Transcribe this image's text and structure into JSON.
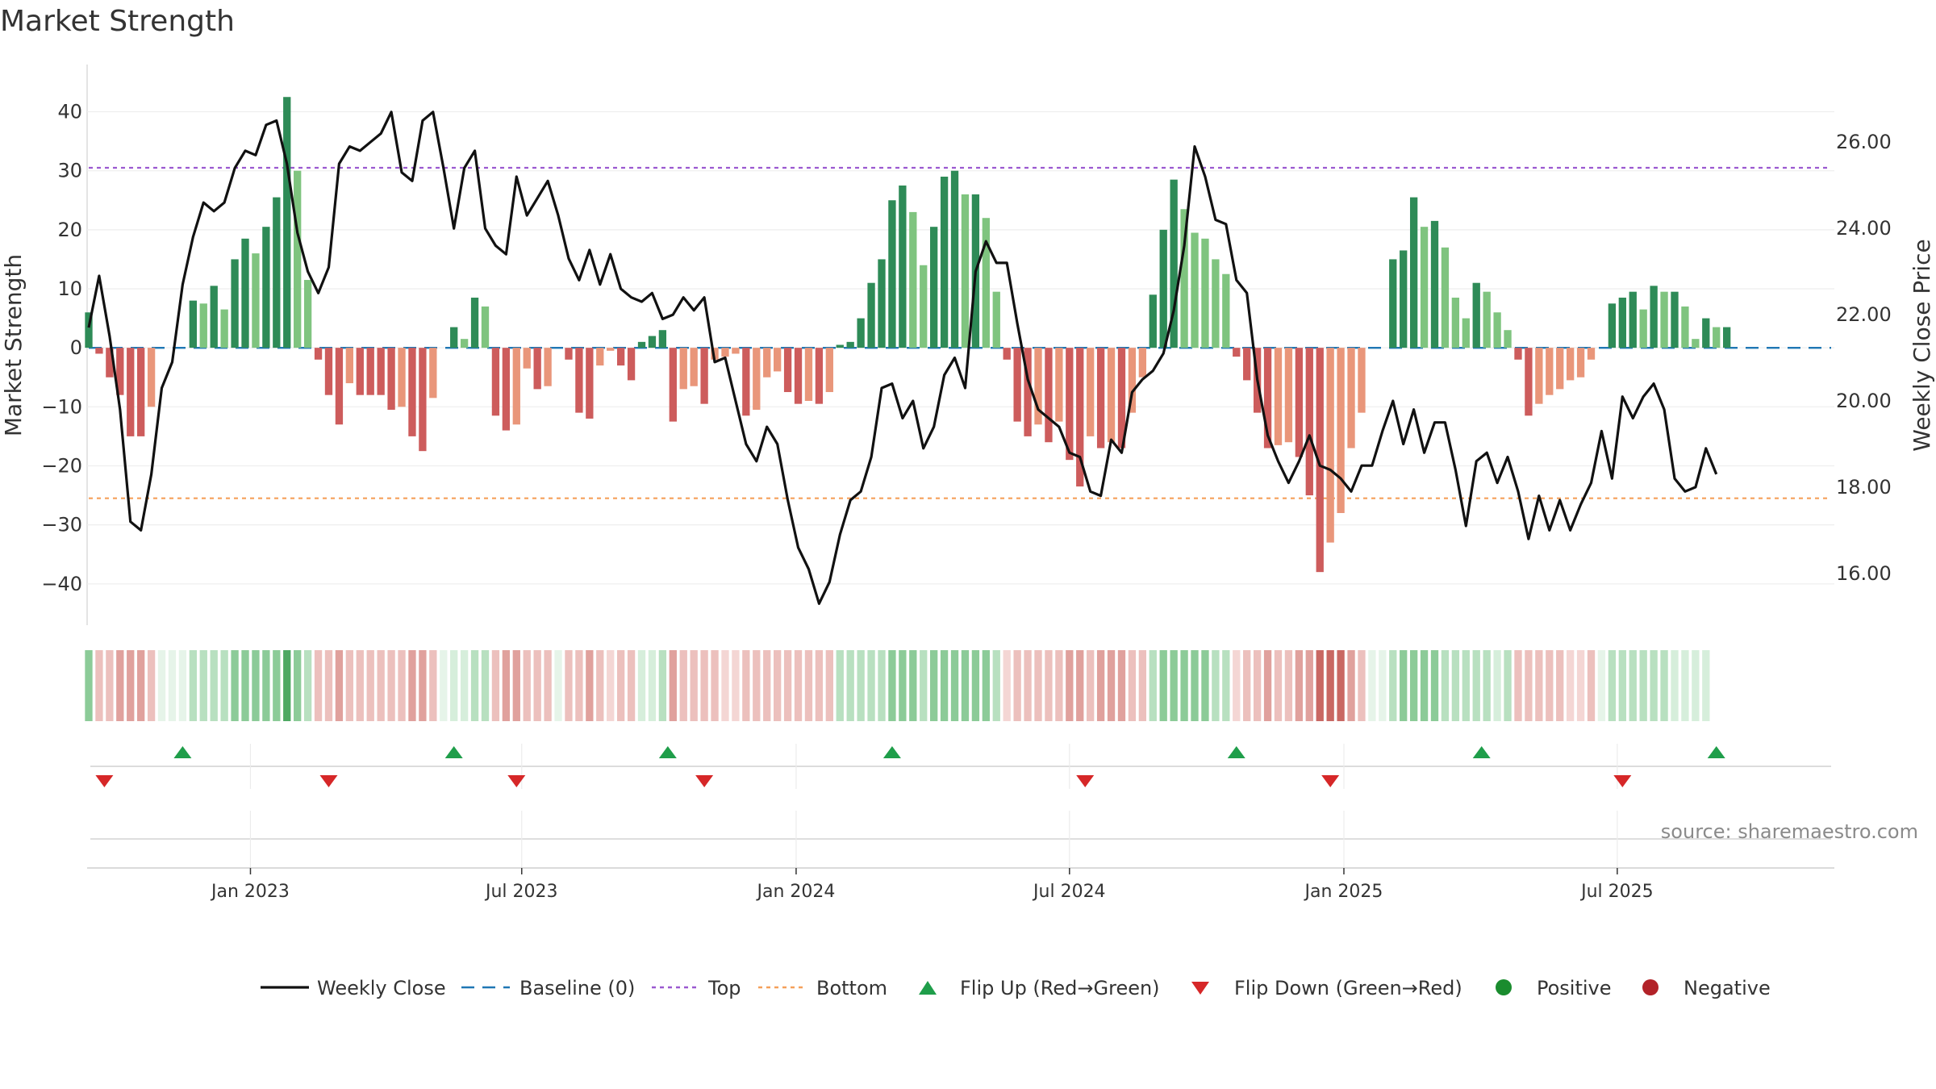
{
  "chart_data": {
    "type": "bar+line",
    "title": "Market Strength",
    "ylabel_left": "Market Strength",
    "ylabel_right": "Weekly Close Price",
    "ylim_left": [
      -47,
      48
    ],
    "ylim_right": [
      14.8,
      27.8
    ],
    "yticks_left": [
      40,
      30,
      20,
      10,
      0,
      -10,
      -20,
      -30,
      -40
    ],
    "ytick_labels_left": [
      "40",
      "30",
      "20",
      "10",
      "0",
      "−10",
      "−20",
      "−30",
      "−40"
    ],
    "yticks_right": [
      26,
      24,
      22,
      20,
      18,
      16
    ],
    "ytick_labels_right": [
      "26.00",
      "24.00",
      "22.00",
      "20.00",
      "18.00",
      "16.00"
    ],
    "top_level": 30.5,
    "bottom_level": -25.5,
    "baseline": 0,
    "x_range_weeks": [
      0,
      167
    ],
    "x_tick_weeks": [
      15.5,
      41.5,
      67.8,
      94,
      120.3,
      146.5
    ],
    "x_tick_labels": [
      "Jan 2023",
      "Jul 2023",
      "Jan 2024",
      "Jul 2024",
      "Jan 2025",
      "Jul 2025"
    ],
    "market_strength": [
      6,
      -1,
      -5,
      -8,
      -15,
      -15,
      -10,
      0,
      0,
      0,
      8,
      7.5,
      10.5,
      6.5,
      15,
      18.5,
      16,
      20.5,
      25.5,
      42.5,
      30,
      11.5,
      -2,
      -8,
      -13,
      -6,
      -8,
      -8,
      -8,
      -10.5,
      -10,
      -15,
      -17.5,
      -8.5,
      0,
      3.5,
      1.5,
      8.5,
      7,
      -11.5,
      -14,
      -13,
      -3.5,
      -7,
      -6.5,
      0,
      -2,
      -11,
      -12,
      -3,
      -0.5,
      -3,
      -5.5,
      1,
      2,
      3,
      -12.5,
      -7,
      -6.5,
      -9.5,
      -2,
      -1.5,
      -1,
      -11.5,
      -10.5,
      -5,
      -4,
      -7.5,
      -9.5,
      -9,
      -9.5,
      -7.5,
      0.5,
      1,
      5,
      11,
      15,
      25,
      27.5,
      23,
      14,
      20.5,
      29,
      30,
      26,
      26,
      22,
      9.5,
      -2,
      -12.5,
      -15,
      -13,
      -16,
      -12.5,
      -19,
      -23.5,
      -15,
      -17,
      -16,
      -17,
      -11,
      -5,
      9,
      20,
      28.5,
      23.5,
      19.5,
      18.5,
      15,
      12.5,
      -1.5,
      -5.5,
      -11,
      -17,
      -16.5,
      -16,
      -18.5,
      -25,
      -38,
      -33,
      -28,
      -17,
      -11,
      0,
      0,
      15,
      16.5,
      25.5,
      20.5,
      21.5,
      17,
      8.5,
      5,
      11,
      9.5,
      6,
      3,
      -2,
      -11.5,
      -9.5,
      -8,
      -7,
      -5.5,
      -5,
      -2,
      0,
      7.5,
      8.5,
      9.5,
      6.5,
      10.5,
      9.5,
      9.5,
      7,
      1.5,
      5,
      3.5,
      3.5
    ],
    "weekly_close": [
      21.7,
      22.9,
      21.5,
      19.8,
      17.2,
      17.0,
      18.3,
      20.3,
      20.9,
      22.7,
      23.8,
      24.6,
      24.4,
      24.6,
      25.4,
      25.8,
      25.7,
      26.4,
      26.5,
      25.5,
      23.9,
      23.0,
      22.5,
      23.1,
      25.5,
      25.9,
      25.8,
      26.0,
      26.2,
      26.7,
      25.3,
      25.1,
      26.5,
      26.7,
      25.4,
      24.0,
      25.4,
      25.8,
      24.0,
      23.6,
      23.4,
      25.2,
      24.3,
      24.7,
      25.1,
      24.3,
      23.3,
      22.8,
      23.5,
      22.7,
      23.4,
      22.6,
      22.4,
      22.3,
      22.5,
      21.9,
      22.0,
      22.4,
      22.1,
      22.4,
      20.9,
      21.0,
      20.0,
      19.0,
      18.6,
      19.4,
      19.0,
      17.7,
      16.6,
      16.1,
      15.3,
      15.8,
      16.9,
      17.7,
      17.9,
      18.7,
      20.3,
      20.4,
      19.6,
      20.0,
      18.9,
      19.4,
      20.6,
      21.0,
      20.3,
      23.0,
      23.7,
      23.2,
      23.2,
      21.8,
      20.5,
      19.8,
      19.6,
      19.4,
      18.8,
      18.7,
      17.9,
      17.8,
      19.1,
      18.8,
      20.2,
      20.5,
      20.7,
      21.1,
      22.1,
      23.6,
      25.9,
      25.2,
      24.2,
      24.1,
      22.8,
      22.5,
      20.5,
      19.2,
      18.6,
      18.1,
      18.6,
      19.2,
      18.5,
      18.4,
      18.2,
      17.9,
      18.5,
      18.5,
      19.3,
      20.0,
      19.0,
      19.8,
      18.8,
      19.5,
      19.5,
      18.4,
      17.1,
      18.6,
      18.8,
      18.1,
      18.7,
      17.9,
      16.8,
      17.8,
      17.0,
      17.7,
      17.0,
      17.6,
      18.1,
      19.3,
      18.2,
      20.1,
      19.6,
      20.1,
      20.4,
      19.8,
      18.2,
      17.9,
      18.0,
      18.9,
      18.3
    ],
    "strength_strip_intensity": [
      2,
      1,
      1,
      2,
      2,
      2,
      1,
      1,
      0,
      1,
      1,
      1,
      1,
      1,
      2,
      2,
      2,
      2,
      2,
      3,
      2,
      1,
      1,
      1,
      2,
      1,
      1,
      1,
      1,
      1,
      1,
      2,
      2,
      1,
      0,
      0,
      0,
      1,
      1,
      1,
      2,
      2,
      1,
      1,
      1,
      0,
      1,
      1,
      2,
      1,
      0,
      1,
      1,
      0,
      0,
      1,
      2,
      1,
      1,
      1,
      1,
      0,
      0,
      1,
      1,
      1,
      1,
      1,
      1,
      1,
      1,
      1,
      1,
      1,
      1,
      1,
      1,
      2,
      2,
      2,
      1,
      2,
      2,
      2,
      2,
      2,
      2,
      1,
      0,
      1,
      1,
      1,
      1,
      1,
      2,
      2,
      1,
      2,
      2,
      2,
      1,
      1,
      1,
      2,
      2,
      2,
      2,
      2,
      1,
      1,
      0,
      1,
      1,
      2,
      1,
      1,
      2,
      2,
      3,
      3,
      3,
      2,
      1,
      0,
      1,
      1,
      2,
      2,
      2,
      2,
      1,
      1,
      1,
      1,
      1,
      0,
      1,
      1,
      1,
      1,
      1,
      1,
      0,
      0,
      1,
      1,
      1,
      1,
      1,
      1,
      1,
      1,
      0,
      0,
      0,
      0
    ],
    "flip_up_weeks": [
      9,
      35,
      55.5,
      77,
      110,
      133.5,
      156
    ],
    "flip_down_weeks": [
      1.5,
      23,
      41,
      59,
      95.5,
      119,
      147
    ],
    "colors": {
      "strong_green": "#2e8b57",
      "light_green": "#7fc47f",
      "strong_red": "#cd5c5c",
      "light_red": "#e9967a",
      "line": "#111111",
      "baseline": "#1f77b4",
      "top": "#9b59d0",
      "bottom": "#f5a05a",
      "flip_up": "#1f9e4a",
      "flip_down": "#d62728",
      "positive": "#1a8c2e",
      "negative": "#b22228"
    },
    "legend": [
      {
        "label": "Weekly Close",
        "kind": "line"
      },
      {
        "label": "Baseline (0)",
        "kind": "dash"
      },
      {
        "label": "Top",
        "kind": "dot-purple"
      },
      {
        "label": "Bottom",
        "kind": "dot-orange"
      },
      {
        "label": "Flip Up (Red→Green)",
        "kind": "tri-up"
      },
      {
        "label": "Flip Down (Green→Red)",
        "kind": "tri-down"
      },
      {
        "label": "Positive",
        "kind": "circle-pos"
      },
      {
        "label": "Negative",
        "kind": "circle-neg"
      }
    ],
    "source": "source: sharemaestro.com"
  }
}
